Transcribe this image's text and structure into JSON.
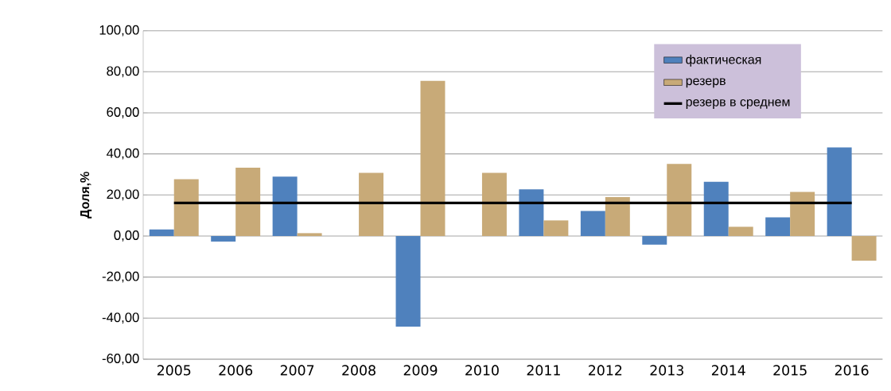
{
  "chart_data": {
    "type": "bar",
    "ylabel": "Доля,%",
    "categories": [
      "2005",
      "2006",
      "2007",
      "2008",
      "2009",
      "2010",
      "2011",
      "2012",
      "2013",
      "2014",
      "2015",
      "2016"
    ],
    "series": [
      {
        "name": "фактическая",
        "color": "#4f81bd",
        "values": [
          3.2,
          -2.7,
          28.9,
          null,
          -44.1,
          null,
          22.7,
          12.2,
          -4.2,
          26.4,
          9.1,
          43.2
        ]
      },
      {
        "name": "резерв",
        "color": "#c8aa78",
        "values": [
          27.7,
          33.3,
          1.4,
          30.8,
          75.6,
          30.8,
          7.6,
          19.0,
          35.1,
          4.5,
          21.5,
          -12.0
        ]
      },
      {
        "name": "резерв в среднем",
        "type": "line",
        "color": "#000000",
        "values": [
          16.1,
          16.1,
          16.1,
          16.1,
          16.1,
          16.1,
          16.1,
          16.1,
          16.1,
          16.1,
          16.1,
          16.1
        ]
      }
    ],
    "ylim": [
      -60,
      100
    ],
    "yticks": [
      {
        "value": -60,
        "label": "-60,00"
      },
      {
        "value": -40,
        "label": "-40,00"
      },
      {
        "value": -20,
        "label": "-20,00"
      },
      {
        "value": 0,
        "label": "0,00"
      },
      {
        "value": 20,
        "label": "20,00"
      },
      {
        "value": 40,
        "label": "40,00"
      },
      {
        "value": 60,
        "label": "60,00"
      },
      {
        "value": 80,
        "label": "80,00"
      },
      {
        "value": 100,
        "label": "100,00"
      }
    ],
    "grid": "y",
    "legend": "top right"
  }
}
